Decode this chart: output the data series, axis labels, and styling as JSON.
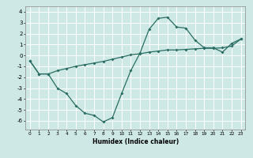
{
  "xlabel": "Humidex (Indice chaleur)",
  "bg_color": "#cde8e5",
  "grid_color": "#ffffff",
  "line_color": "#2a6e63",
  "xlim": [
    -0.5,
    23.5
  ],
  "ylim": [
    -6.8,
    4.5
  ],
  "xticks": [
    0,
    1,
    2,
    3,
    4,
    5,
    6,
    7,
    8,
    9,
    10,
    11,
    12,
    13,
    14,
    15,
    16,
    17,
    18,
    19,
    20,
    21,
    22,
    23
  ],
  "yticks": [
    -6,
    -5,
    -4,
    -3,
    -2,
    -1,
    0,
    1,
    2,
    3,
    4
  ],
  "line1_x": [
    0,
    1,
    2,
    3,
    4,
    5,
    6,
    7,
    8,
    9,
    10,
    11,
    12,
    13,
    14,
    15,
    16,
    17,
    18,
    19,
    20,
    21,
    22,
    23
  ],
  "line1_y": [
    -0.5,
    -1.7,
    -1.7,
    -1.4,
    -1.2,
    -1.0,
    -0.85,
    -0.7,
    -0.55,
    -0.35,
    -0.15,
    0.05,
    0.15,
    0.3,
    0.4,
    0.5,
    0.5,
    0.55,
    0.6,
    0.65,
    0.65,
    0.7,
    0.85,
    1.5
  ],
  "line2_x": [
    0,
    1,
    2,
    3,
    4,
    5,
    6,
    7,
    8,
    9,
    10,
    11,
    12,
    13,
    14,
    15,
    16,
    17,
    18,
    19,
    20,
    21,
    22,
    23
  ],
  "line2_y": [
    -0.5,
    -1.7,
    -1.7,
    -3.0,
    -3.5,
    -4.6,
    -5.3,
    -5.5,
    -6.1,
    -5.7,
    -3.5,
    -1.4,
    0.2,
    2.4,
    3.4,
    3.5,
    2.6,
    2.5,
    1.4,
    0.7,
    0.7,
    0.3,
    1.1,
    1.5
  ]
}
